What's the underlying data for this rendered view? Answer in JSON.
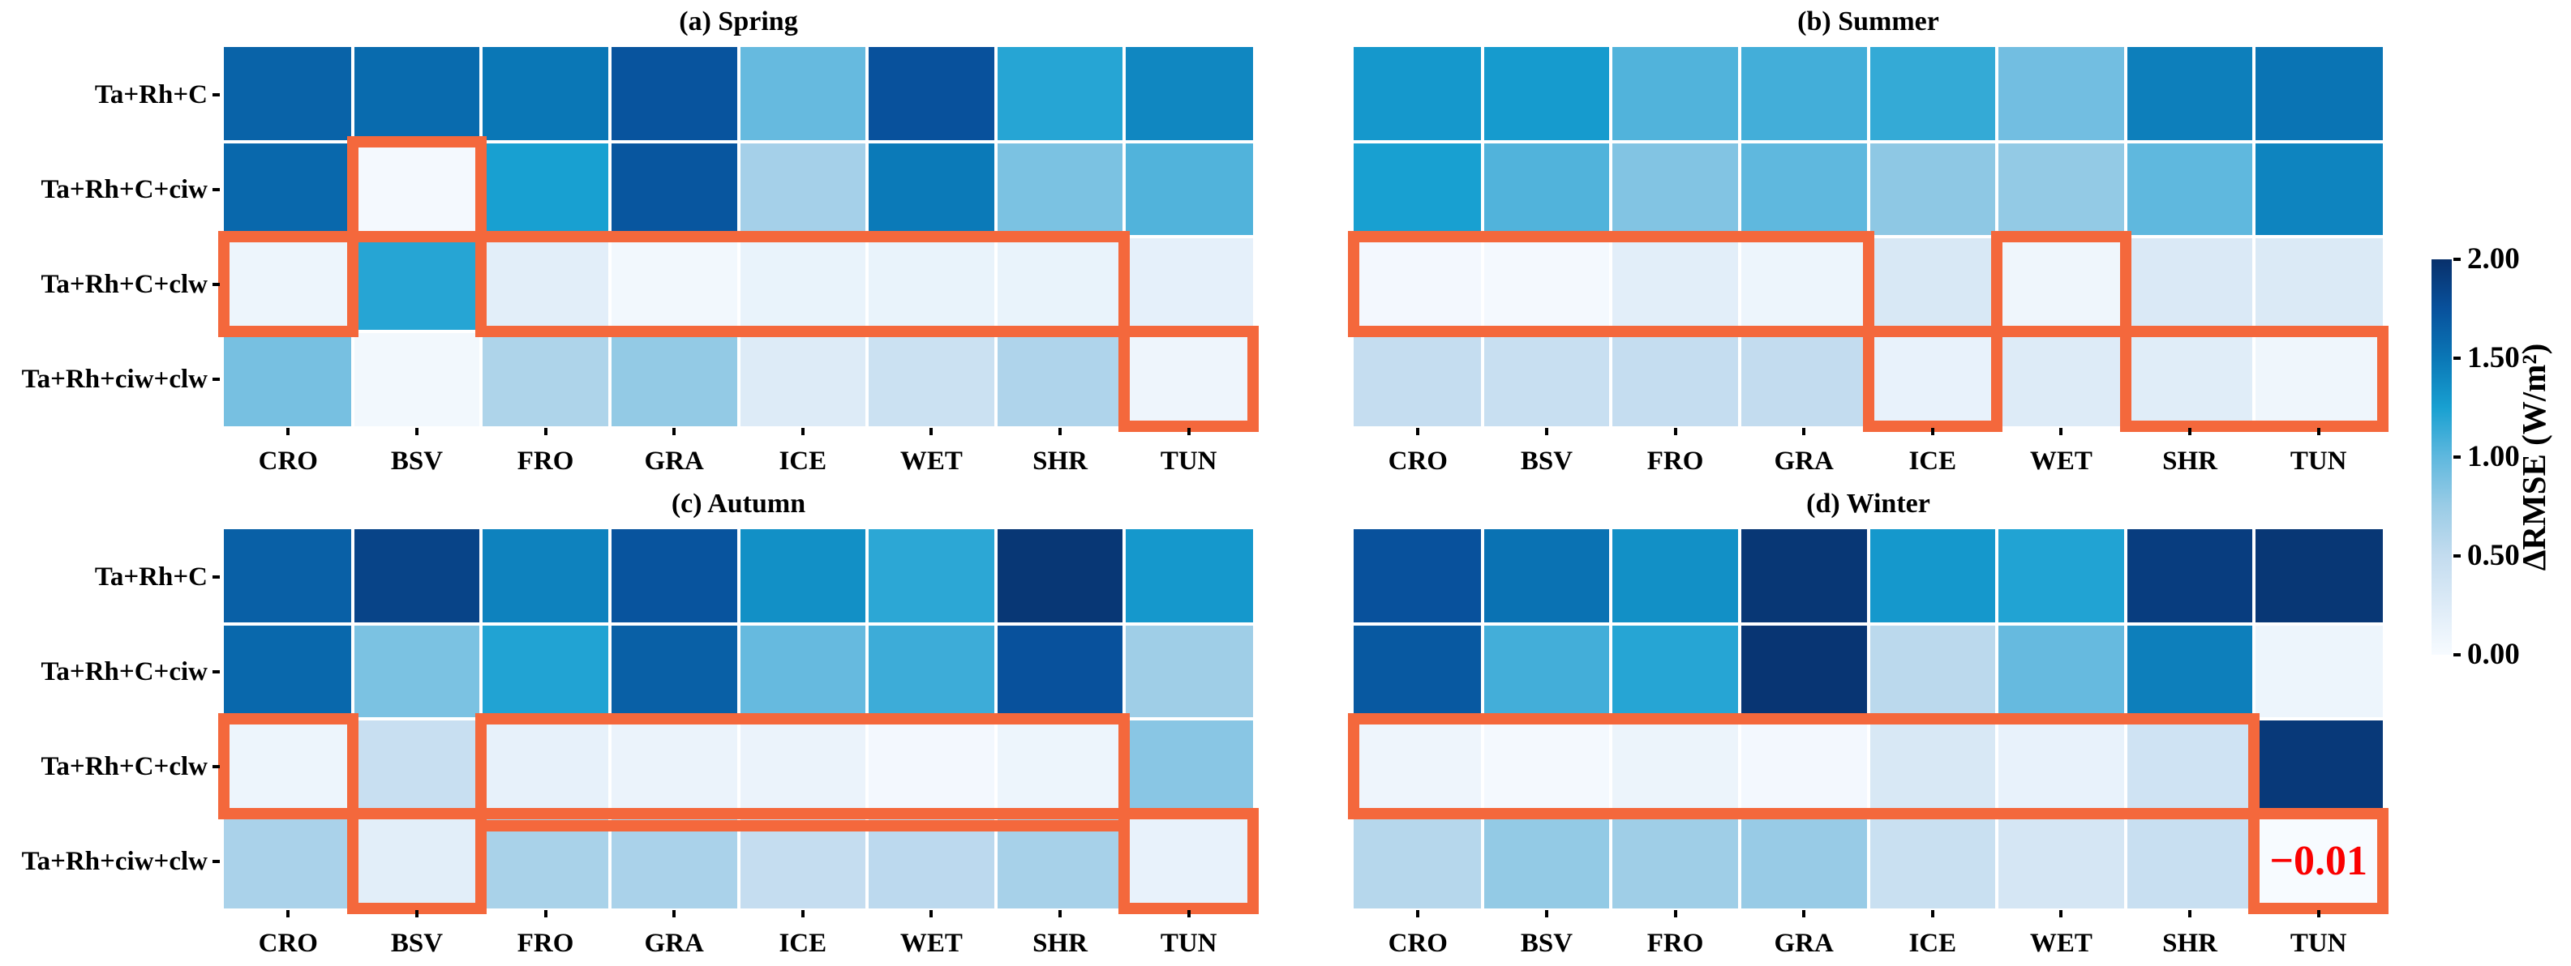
{
  "chart_data": {
    "type": "heatmap",
    "figure": "seasonal delta-RMSE heatmaps by land cover type and experiment",
    "rows": [
      "Ta+Rh+C",
      "Ta+Rh+C+ciw",
      "Ta+Rh+C+clw",
      "Ta+Rh+ciw+clw"
    ],
    "columns": [
      "CRO",
      "BSV",
      "FRO",
      "GRA",
      "ICE",
      "WET",
      "SHR",
      "TUN"
    ],
    "colorbar": {
      "label": "ΔRMSE (W/m²)",
      "ticks": [
        "2.00",
        "1.50",
        "1.00",
        "0.50",
        "0.00"
      ],
      "vmin": 0,
      "vmax": 2
    },
    "colormap_anchors": [
      [
        0.0,
        "#f7fbff"
      ],
      [
        0.125,
        "#ddebf7"
      ],
      [
        0.25,
        "#c3dcef"
      ],
      [
        0.375,
        "#9acce6"
      ],
      [
        0.5,
        "#5fb8de"
      ],
      [
        0.625,
        "#18a0d1"
      ],
      [
        0.75,
        "#0a77b6"
      ],
      [
        0.875,
        "#08519c"
      ],
      [
        1.0,
        "#08306b"
      ]
    ],
    "highlight_color": "#F4683C",
    "grid": false,
    "legend_position": "right",
    "panels": [
      {
        "id": "a",
        "title": "(a) Spring",
        "values": [
          [
            1.63,
            1.58,
            1.5,
            1.73,
            0.97,
            1.75,
            1.2,
            1.4
          ],
          [
            1.6,
            0.03,
            1.25,
            1.72,
            0.68,
            1.48,
            0.88,
            1.05
          ],
          [
            0.1,
            1.2,
            0.2,
            0.05,
            0.13,
            0.13,
            0.13,
            0.17
          ],
          [
            0.9,
            0.05,
            0.63,
            0.78,
            0.25,
            0.42,
            0.62,
            0.09
          ]
        ],
        "highlights": [
          {
            "row": 2,
            "c0": 0,
            "c1": 0
          },
          {
            "row": 1,
            "c0": 1,
            "c1": 1
          },
          {
            "row": 2,
            "c0": 2,
            "c1": 6
          },
          {
            "row": 3,
            "c0": 7,
            "c1": 7
          }
        ],
        "connectors": [],
        "annotations": []
      },
      {
        "id": "b",
        "title": "(b) Summer",
        "values": [
          [
            1.3,
            1.28,
            1.05,
            1.1,
            1.15,
            0.92,
            1.45,
            1.52
          ],
          [
            1.25,
            1.05,
            0.85,
            1.0,
            0.8,
            0.78,
            1.0,
            1.42
          ],
          [
            0.04,
            0.03,
            0.2,
            0.1,
            0.3,
            0.08,
            0.28,
            0.27
          ],
          [
            0.48,
            0.45,
            0.48,
            0.5,
            0.14,
            0.25,
            0.22,
            0.08
          ]
        ],
        "highlights": [
          {
            "row": 2,
            "c0": 0,
            "c1": 3
          },
          {
            "row": 3,
            "c0": 4,
            "c1": 4
          },
          {
            "row": 2,
            "c0": 5,
            "c1": 5
          },
          {
            "row": 3,
            "c0": 6,
            "c1": 7
          }
        ],
        "connectors": [],
        "annotations": []
      },
      {
        "id": "c",
        "title": "(c) Autumn",
        "values": [
          [
            1.65,
            1.85,
            1.43,
            1.73,
            1.35,
            1.18,
            1.95,
            1.3
          ],
          [
            1.6,
            0.88,
            1.22,
            1.65,
            0.97,
            1.12,
            1.75,
            0.72
          ],
          [
            0.1,
            0.45,
            0.15,
            0.12,
            0.12,
            0.04,
            0.1,
            0.82
          ],
          [
            0.65,
            0.2,
            0.66,
            0.65,
            0.48,
            0.54,
            0.67,
            0.14
          ]
        ],
        "highlights": [
          {
            "row": 2,
            "c0": 0,
            "c1": 0
          },
          {
            "row": 3,
            "c0": 1,
            "c1": 1
          },
          {
            "row": 2,
            "c0": 2,
            "c1": 6
          },
          {
            "row": 3,
            "c0": 7,
            "c1": 7
          }
        ],
        "connectors": [
          {
            "row": 3,
            "c0": 2,
            "c1": 6,
            "edge": "top"
          }
        ],
        "annotations": []
      },
      {
        "id": "d",
        "title": "(d) Winter",
        "values": [
          [
            1.75,
            1.53,
            1.35,
            1.95,
            1.3,
            1.22,
            1.9,
            1.95
          ],
          [
            1.7,
            1.1,
            1.2,
            1.96,
            0.55,
            0.97,
            1.45,
            0.1
          ],
          [
            0.09,
            0.03,
            0.11,
            0.04,
            0.3,
            0.14,
            0.38,
            1.93
          ],
          [
            0.58,
            0.78,
            0.72,
            0.76,
            0.44,
            0.33,
            0.45,
            -0.01
          ]
        ],
        "highlights": [
          {
            "row": 2,
            "c0": 0,
            "c1": 6
          },
          {
            "row": 3,
            "c0": 7,
            "c1": 7
          }
        ],
        "connectors": [],
        "annotations": [
          {
            "row": 3,
            "col": 7,
            "text": "−0.01",
            "color": "#FA0000"
          }
        ]
      }
    ]
  }
}
